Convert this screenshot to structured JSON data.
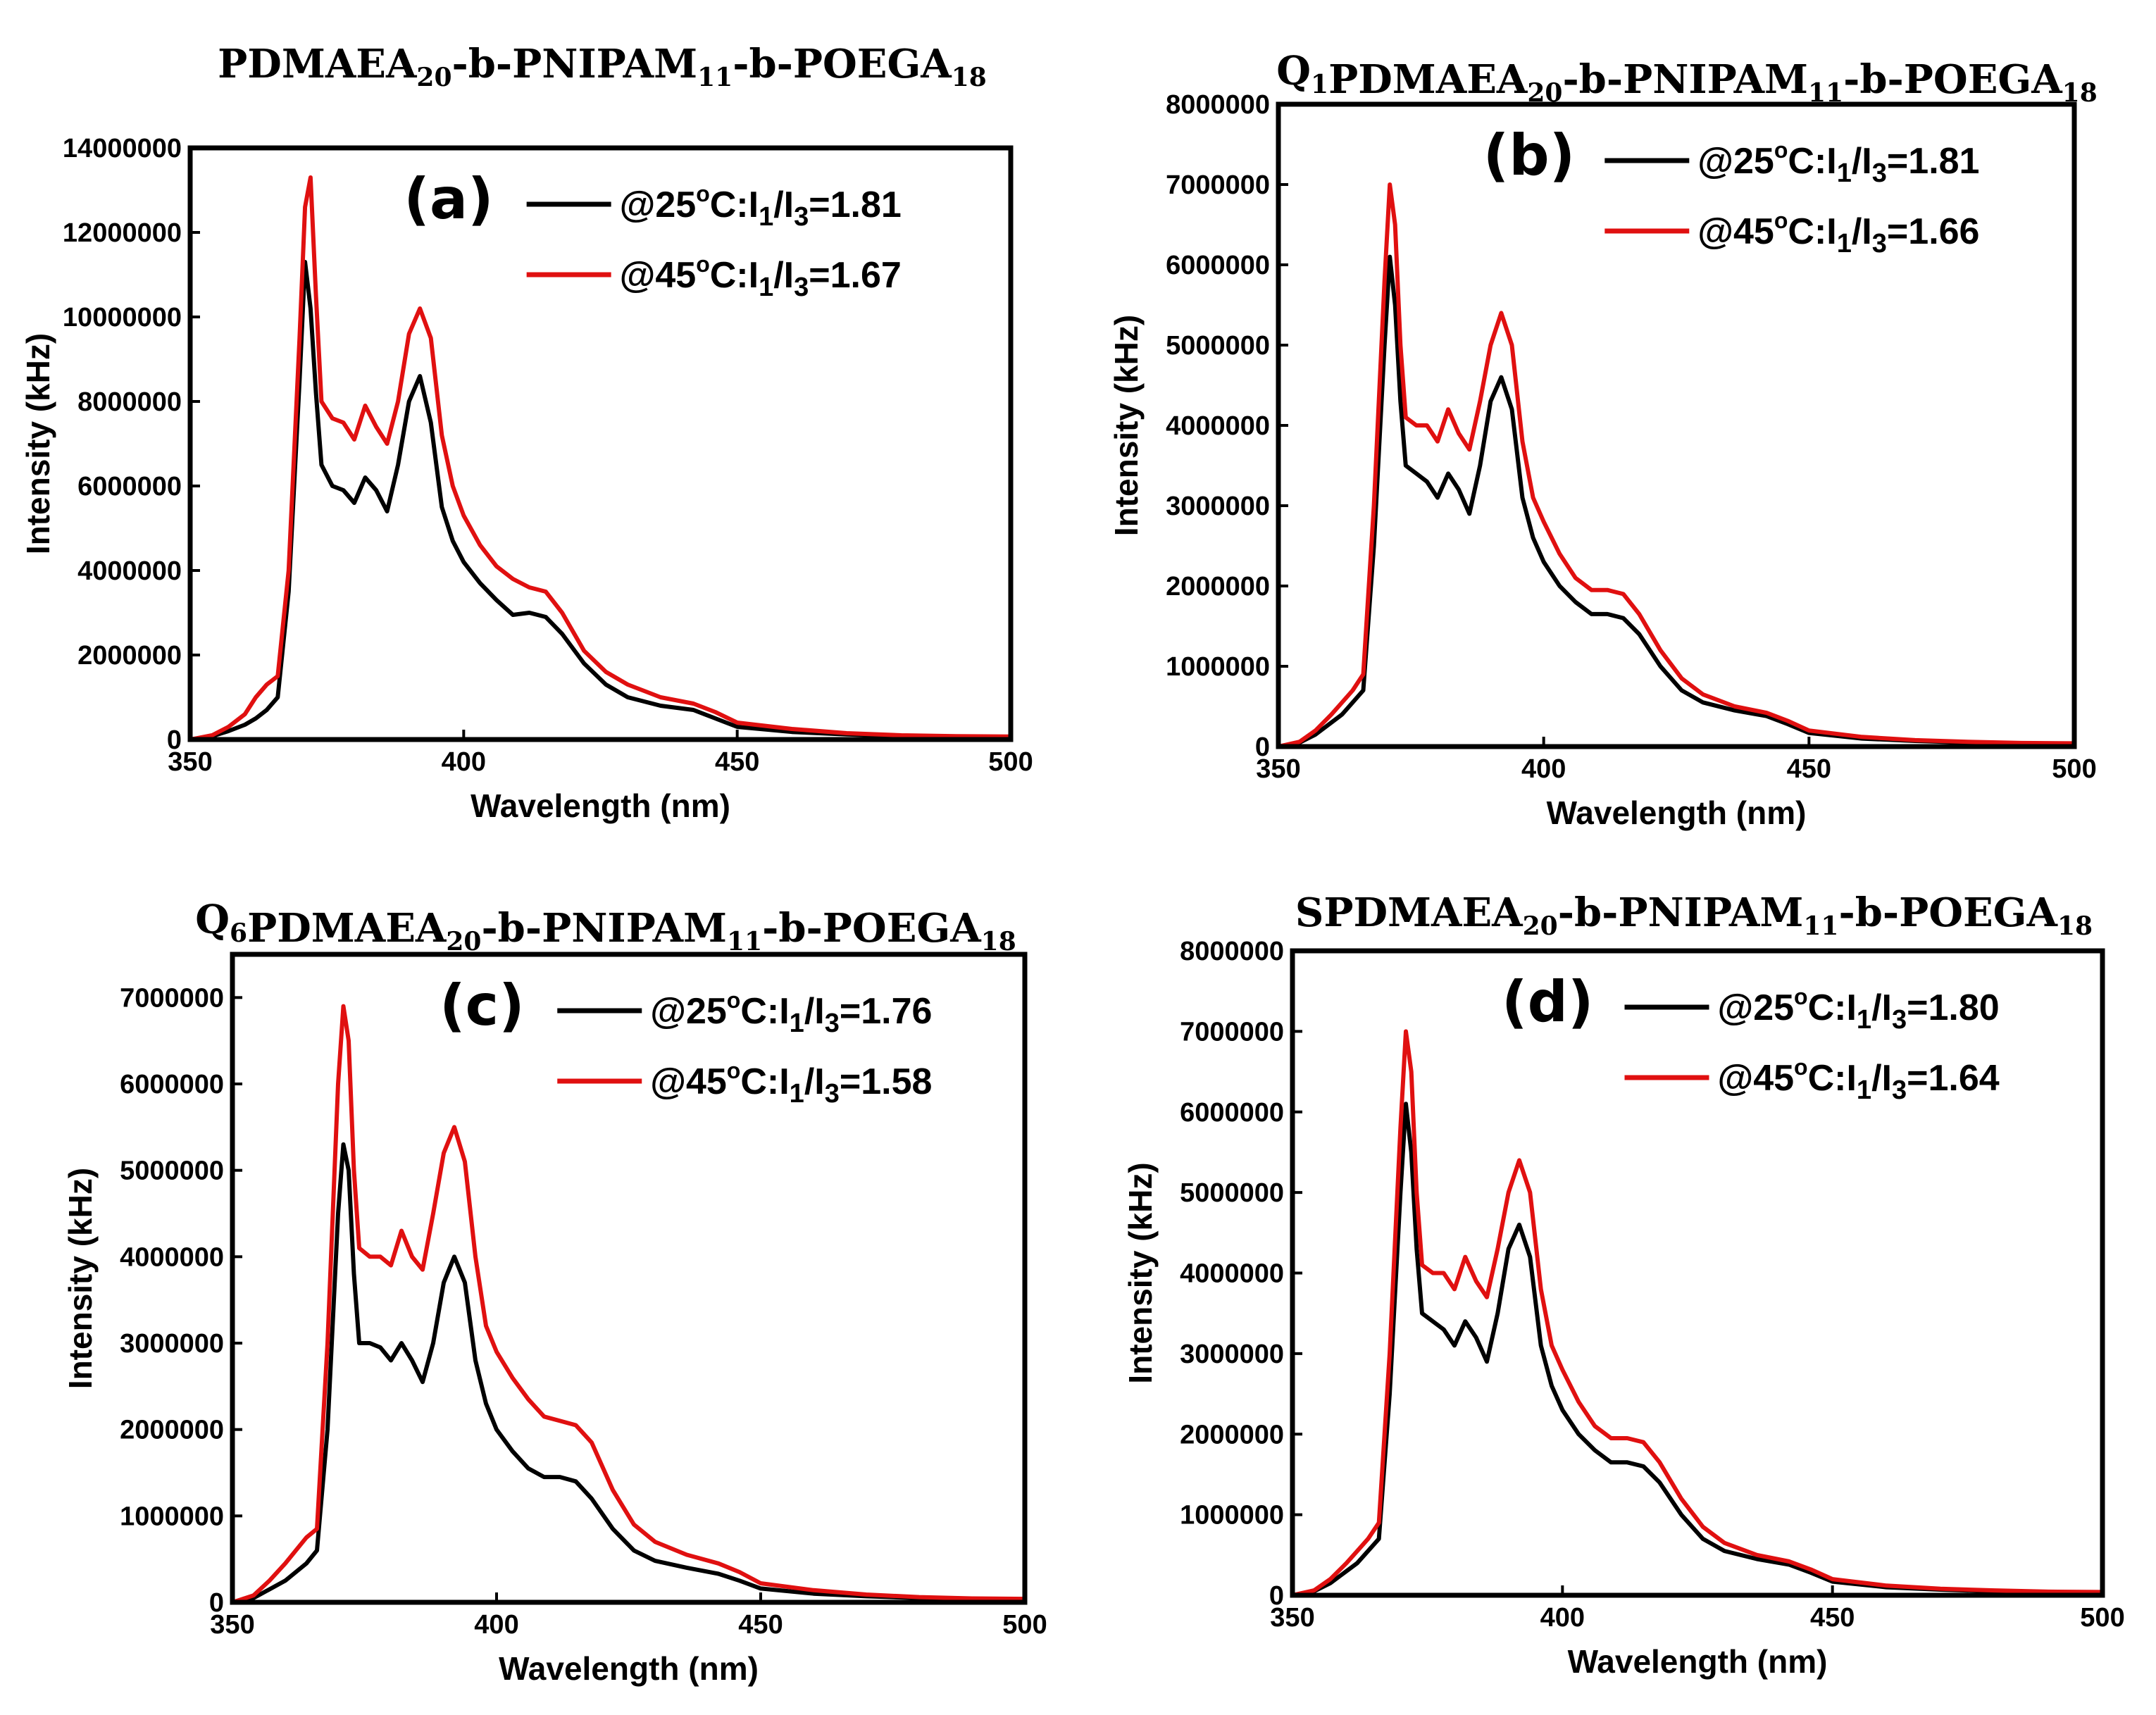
{
  "colors": {
    "series_25C": "#000000",
    "series_45C": "#e01010",
    "axis": "#000000"
  },
  "chart_data": [
    {
      "type": "line",
      "panel_label": "(a)",
      "title": {
        "prefix": "",
        "prefix_sub": "",
        "main": "PDMAEA",
        "sub1": "20",
        "mid1": "-b-PNIPAM",
        "sub2": "11",
        "mid2": "-b-POEGA",
        "sub3": "18"
      },
      "xlabel": "Wavelength (nm)",
      "ylabel": "Intensity (kHz)",
      "xlim": [
        350,
        500
      ],
      "ylim": [
        0,
        14000000
      ],
      "xticks": [
        "350",
        "400",
        "450",
        "500"
      ],
      "yticks": [
        "0",
        "2000000",
        "4000000",
        "6000000",
        "8000000",
        "10000000",
        "12000000",
        "14000000"
      ],
      "legend_position": "top-right",
      "series": [
        {
          "name": "25C",
          "color": "#000000",
          "label_prefix": "@25",
          "sup": "o",
          "label_mid": "C:I",
          "sub_a": "1",
          "label_slash": "/I",
          "sub_b": "3",
          "label_value": "=1.81",
          "x": [
            350,
            354,
            357,
            360,
            362,
            364,
            366,
            368,
            370,
            371,
            372,
            373,
            374,
            376,
            378,
            380,
            382,
            384,
            386,
            388,
            390,
            392,
            394,
            396,
            398,
            400,
            403,
            406,
            409,
            412,
            415,
            418,
            422,
            426,
            430,
            436,
            442,
            446,
            450,
            460,
            470,
            480,
            490,
            500
          ],
          "y": [
            0,
            80000,
            200000,
            350000,
            500000,
            700000,
            1000000,
            3500000,
            8500000,
            11300000,
            10200000,
            8200000,
            6500000,
            6000000,
            5900000,
            5600000,
            6200000,
            5900000,
            5400000,
            6500000,
            8000000,
            8600000,
            7500000,
            5500000,
            4700000,
            4200000,
            3700000,
            3300000,
            2950000,
            3000000,
            2900000,
            2500000,
            1800000,
            1300000,
            1000000,
            800000,
            700000,
            500000,
            300000,
            180000,
            120000,
            80000,
            60000,
            50000
          ]
        },
        {
          "name": "45C",
          "color": "#e01010",
          "label_prefix": "@45",
          "sup": "o",
          "label_mid": "C:I",
          "sub_a": "1",
          "label_slash": "/I",
          "sub_b": "3",
          "label_value": "=1.67",
          "x": [
            350,
            354,
            357,
            360,
            362,
            364,
            366,
            368,
            370,
            371,
            372,
            373,
            374,
            376,
            378,
            380,
            382,
            384,
            386,
            388,
            390,
            392,
            394,
            396,
            398,
            400,
            403,
            406,
            409,
            412,
            415,
            418,
            422,
            426,
            430,
            436,
            442,
            446,
            450,
            460,
            470,
            480,
            490,
            500
          ],
          "y": [
            0,
            100000,
            300000,
            600000,
            1000000,
            1300000,
            1500000,
            4000000,
            9500000,
            12600000,
            13300000,
            10500000,
            8000000,
            7600000,
            7500000,
            7100000,
            7900000,
            7400000,
            7000000,
            8000000,
            9600000,
            10200000,
            9500000,
            7200000,
            6000000,
            5300000,
            4600000,
            4100000,
            3800000,
            3600000,
            3500000,
            3000000,
            2100000,
            1600000,
            1300000,
            1000000,
            850000,
            650000,
            400000,
            250000,
            150000,
            100000,
            80000,
            70000
          ]
        }
      ]
    },
    {
      "type": "line",
      "panel_label": "(b)",
      "title": {
        "prefix": "Q",
        "prefix_sub": "1",
        "main": "PDMAEA",
        "sub1": "20",
        "mid1": "-b-PNIPAM",
        "sub2": "11",
        "mid2": "-b-POEGA",
        "sub3": "18"
      },
      "xlabel": "Wavelength (nm)",
      "ylabel": "Intensity (kHz)",
      "xlim": [
        350,
        500
      ],
      "ylim": [
        0,
        8000000
      ],
      "xticks": [
        "350",
        "400",
        "450",
        "500"
      ],
      "yticks": [
        "0",
        "1000000",
        "2000000",
        "3000000",
        "4000000",
        "5000000",
        "6000000",
        "7000000",
        "8000000"
      ],
      "legend_position": "top-right",
      "series": [
        {
          "name": "25C",
          "color": "#000000",
          "label_prefix": "@25",
          "sup": "o",
          "label_mid": "C:I",
          "sub_a": "1",
          "label_slash": "/I",
          "sub_b": "3",
          "label_value": "=1.81",
          "x": [
            350,
            354,
            357,
            360,
            362,
            364,
            366,
            368,
            370,
            371,
            372,
            373,
            374,
            376,
            378,
            380,
            382,
            384,
            386,
            388,
            390,
            392,
            394,
            396,
            398,
            400,
            403,
            406,
            409,
            412,
            415,
            418,
            422,
            426,
            430,
            436,
            442,
            446,
            450,
            460,
            470,
            480,
            490,
            500
          ],
          "y": [
            0,
            50000,
            150000,
            300000,
            400000,
            550000,
            700000,
            2500000,
            5000000,
            6100000,
            5500000,
            4300000,
            3500000,
            3400000,
            3300000,
            3100000,
            3400000,
            3200000,
            2900000,
            3500000,
            4300000,
            4600000,
            4200000,
            3100000,
            2600000,
            2300000,
            2000000,
            1800000,
            1650000,
            1650000,
            1600000,
            1400000,
            1000000,
            700000,
            550000,
            450000,
            380000,
            280000,
            170000,
            100000,
            70000,
            50000,
            35000,
            30000
          ]
        },
        {
          "name": "45C",
          "color": "#e01010",
          "label_prefix": "@45",
          "sup": "o",
          "label_mid": "C:I",
          "sub_a": "1",
          "label_slash": "/I",
          "sub_b": "3",
          "label_value": "=1.66",
          "x": [
            350,
            354,
            357,
            360,
            362,
            364,
            366,
            368,
            370,
            371,
            372,
            373,
            374,
            376,
            378,
            380,
            382,
            384,
            386,
            388,
            390,
            392,
            394,
            396,
            398,
            400,
            403,
            406,
            409,
            412,
            415,
            418,
            422,
            426,
            430,
            436,
            442,
            446,
            450,
            460,
            470,
            480,
            490,
            500
          ],
          "y": [
            0,
            60000,
            200000,
            400000,
            550000,
            700000,
            900000,
            3000000,
            5800000,
            7000000,
            6500000,
            5000000,
            4100000,
            4000000,
            4000000,
            3800000,
            4200000,
            3900000,
            3700000,
            4300000,
            5000000,
            5400000,
            5000000,
            3800000,
            3100000,
            2800000,
            2400000,
            2100000,
            1950000,
            1950000,
            1900000,
            1650000,
            1200000,
            850000,
            650000,
            500000,
            420000,
            320000,
            200000,
            120000,
            80000,
            60000,
            45000,
            40000
          ]
        }
      ]
    },
    {
      "type": "line",
      "panel_label": "(c)",
      "title": {
        "prefix": "Q",
        "prefix_sub": "6",
        "main": "PDMAEA",
        "sub1": "20",
        "mid1": "-b-PNIPAM",
        "sub2": "11",
        "mid2": "-b-POEGA",
        "sub3": "18"
      },
      "xlabel": "Wavelength (nm)",
      "ylabel": "Intensity (kHz)",
      "xlim": [
        350,
        500
      ],
      "ylim": [
        0,
        7500000
      ],
      "xticks": [
        "350",
        "400",
        "450",
        "500"
      ],
      "yticks": [
        "0",
        "1000000",
        "2000000",
        "3000000",
        "4000000",
        "5000000",
        "6000000",
        "7000000"
      ],
      "legend_position": "top-right",
      "series": [
        {
          "name": "25C",
          "color": "#000000",
          "label_prefix": "@25",
          "sup": "o",
          "label_mid": "C:I",
          "sub_a": "1",
          "label_slash": "/I",
          "sub_b": "3",
          "label_value": "=1.76",
          "x": [
            350,
            354,
            357,
            360,
            362,
            364,
            366,
            368,
            370,
            371,
            372,
            373,
            374,
            376,
            378,
            380,
            382,
            384,
            386,
            388,
            390,
            392,
            394,
            396,
            398,
            400,
            403,
            406,
            409,
            412,
            415,
            418,
            422,
            426,
            430,
            436,
            442,
            446,
            450,
            460,
            470,
            480,
            490,
            500
          ],
          "y": [
            0,
            50000,
            150000,
            250000,
            350000,
            450000,
            600000,
            2000000,
            4500000,
            5300000,
            5000000,
            3800000,
            3000000,
            3000000,
            2950000,
            2800000,
            3000000,
            2800000,
            2550000,
            3000000,
            3700000,
            4000000,
            3700000,
            2800000,
            2300000,
            2000000,
            1750000,
            1550000,
            1450000,
            1450000,
            1400000,
            1200000,
            850000,
            600000,
            480000,
            400000,
            330000,
            250000,
            160000,
            100000,
            70000,
            50000,
            35000,
            30000
          ]
        },
        {
          "name": "45C",
          "color": "#e01010",
          "label_prefix": "@45",
          "sup": "o",
          "label_mid": "C:I",
          "sub_a": "1",
          "label_slash": "/I",
          "sub_b": "3",
          "label_value": "=1.58",
          "x": [
            350,
            354,
            357,
            360,
            362,
            364,
            366,
            368,
            370,
            371,
            372,
            373,
            374,
            376,
            378,
            380,
            382,
            384,
            386,
            388,
            390,
            392,
            394,
            396,
            398,
            400,
            403,
            406,
            409,
            412,
            415,
            418,
            422,
            426,
            430,
            436,
            442,
            446,
            450,
            460,
            470,
            480,
            490,
            500
          ],
          "y": [
            0,
            80000,
            250000,
            450000,
            600000,
            750000,
            850000,
            3000000,
            6000000,
            6900000,
            6500000,
            5000000,
            4100000,
            4000000,
            4000000,
            3900000,
            4300000,
            4000000,
            3850000,
            4500000,
            5200000,
            5500000,
            5100000,
            4000000,
            3200000,
            2900000,
            2600000,
            2350000,
            2150000,
            2100000,
            2050000,
            1850000,
            1300000,
            900000,
            700000,
            550000,
            450000,
            350000,
            220000,
            140000,
            90000,
            60000,
            45000,
            40000
          ]
        }
      ]
    },
    {
      "type": "line",
      "panel_label": "(d)",
      "title": {
        "prefix": "S",
        "prefix_sub": "",
        "main": "PDMAEA",
        "sub1": "20",
        "mid1": "-b-PNIPAM",
        "sub2": "11",
        "mid2": "-b-POEGA",
        "sub3": "18"
      },
      "xlabel": "Wavelength (nm)",
      "ylabel": "Intensity (kHz)",
      "xlim": [
        350,
        500
      ],
      "ylim": [
        0,
        8000000
      ],
      "xticks": [
        "350",
        "400",
        "450",
        "500"
      ],
      "yticks": [
        "0",
        "1000000",
        "2000000",
        "3000000",
        "4000000",
        "5000000",
        "6000000",
        "7000000",
        "8000000"
      ],
      "legend_position": "top-right",
      "series": [
        {
          "name": "25C",
          "color": "#000000",
          "label_prefix": "@25",
          "sup": "o",
          "label_mid": "C:I",
          "sub_a": "1",
          "label_slash": "/I",
          "sub_b": "3",
          "label_value": "=1.80",
          "x": [
            350,
            354,
            357,
            360,
            362,
            364,
            366,
            368,
            370,
            371,
            372,
            373,
            374,
            376,
            378,
            380,
            382,
            384,
            386,
            388,
            390,
            392,
            394,
            396,
            398,
            400,
            403,
            406,
            409,
            412,
            415,
            418,
            422,
            426,
            430,
            436,
            442,
            446,
            450,
            460,
            470,
            480,
            490,
            500
          ],
          "y": [
            0,
            50000,
            150000,
            300000,
            400000,
            550000,
            700000,
            2500000,
            5000000,
            6100000,
            5500000,
            4300000,
            3500000,
            3400000,
            3300000,
            3100000,
            3400000,
            3200000,
            2900000,
            3500000,
            4300000,
            4600000,
            4200000,
            3100000,
            2600000,
            2300000,
            2000000,
            1800000,
            1650000,
            1650000,
            1600000,
            1400000,
            1000000,
            700000,
            550000,
            450000,
            380000,
            280000,
            170000,
            100000,
            70000,
            50000,
            35000,
            30000
          ]
        },
        {
          "name": "45C",
          "color": "#e01010",
          "label_prefix": "@45",
          "sup": "o",
          "label_mid": "C:I",
          "sub_a": "1",
          "label_slash": "/I",
          "sub_b": "3",
          "label_value": "=1.64",
          "x": [
            350,
            354,
            357,
            360,
            362,
            364,
            366,
            368,
            370,
            371,
            372,
            373,
            374,
            376,
            378,
            380,
            382,
            384,
            386,
            388,
            390,
            392,
            394,
            396,
            398,
            400,
            403,
            406,
            409,
            412,
            415,
            418,
            422,
            426,
            430,
            436,
            442,
            446,
            450,
            460,
            470,
            480,
            490,
            500
          ],
          "y": [
            0,
            60000,
            200000,
            400000,
            550000,
            700000,
            900000,
            3000000,
            5800000,
            7000000,
            6500000,
            5000000,
            4100000,
            4000000,
            4000000,
            3800000,
            4200000,
            3900000,
            3700000,
            4300000,
            5000000,
            5400000,
            5000000,
            3800000,
            3100000,
            2800000,
            2400000,
            2100000,
            1950000,
            1950000,
            1900000,
            1650000,
            1200000,
            850000,
            650000,
            500000,
            420000,
            320000,
            200000,
            120000,
            80000,
            60000,
            45000,
            40000
          ]
        }
      ]
    }
  ]
}
